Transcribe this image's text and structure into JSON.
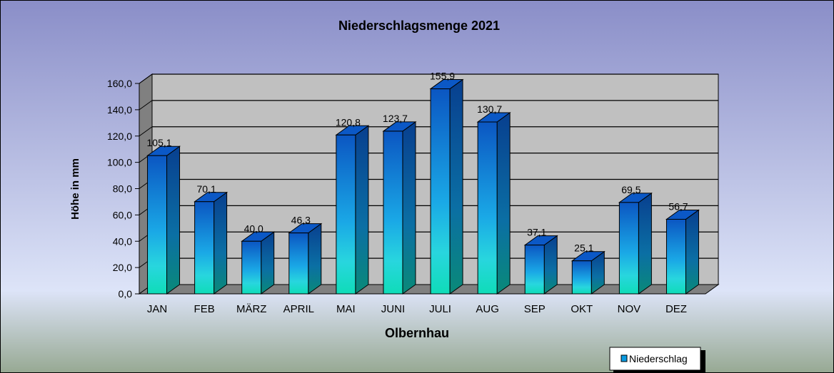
{
  "chart_data": {
    "type": "bar",
    "title": "Niederschlagsmenge  2021",
    "xlabel": "Olbernhau",
    "ylabel": "Höhe in mm",
    "categories": [
      "JAN",
      "FEB",
      "MÄRZ",
      "APRIL",
      "MAI",
      "JUNI",
      "JULI",
      "AUG",
      "SEP",
      "OKT",
      "NOV",
      "DEZ"
    ],
    "series": [
      {
        "name": "Niederschlag",
        "values": [
          105.1,
          70.1,
          40.0,
          46.3,
          120.8,
          123.7,
          155.9,
          130.7,
          37.1,
          25.1,
          69.5,
          56.7
        ],
        "labels": [
          "105,1",
          "70,1",
          "40,0",
          "46,3",
          "120,8",
          "123,7",
          "155,9",
          "130,7",
          "37,1",
          "25,1",
          "69,5",
          "56,7"
        ]
      }
    ],
    "ylim": [
      0,
      160
    ],
    "yticks": [
      0,
      20,
      40,
      60,
      80,
      100,
      120,
      140,
      160
    ],
    "ytick_labels": [
      "0,0",
      "20,0",
      "40,0",
      "60,0",
      "80,0",
      "100,0",
      "120,0",
      "140,0",
      "160,0"
    ],
    "grid": true,
    "legend": "bottom-right",
    "colors": {
      "background_top": "#8a8ec8",
      "background_mid": "#d9e0f6",
      "background_bottom": "#9cad96",
      "plot_wall": "#c0c0c0",
      "side_wall": "#808080",
      "bar_top": "#0a55c0",
      "bar_bottom": "#10dcc0"
    }
  }
}
